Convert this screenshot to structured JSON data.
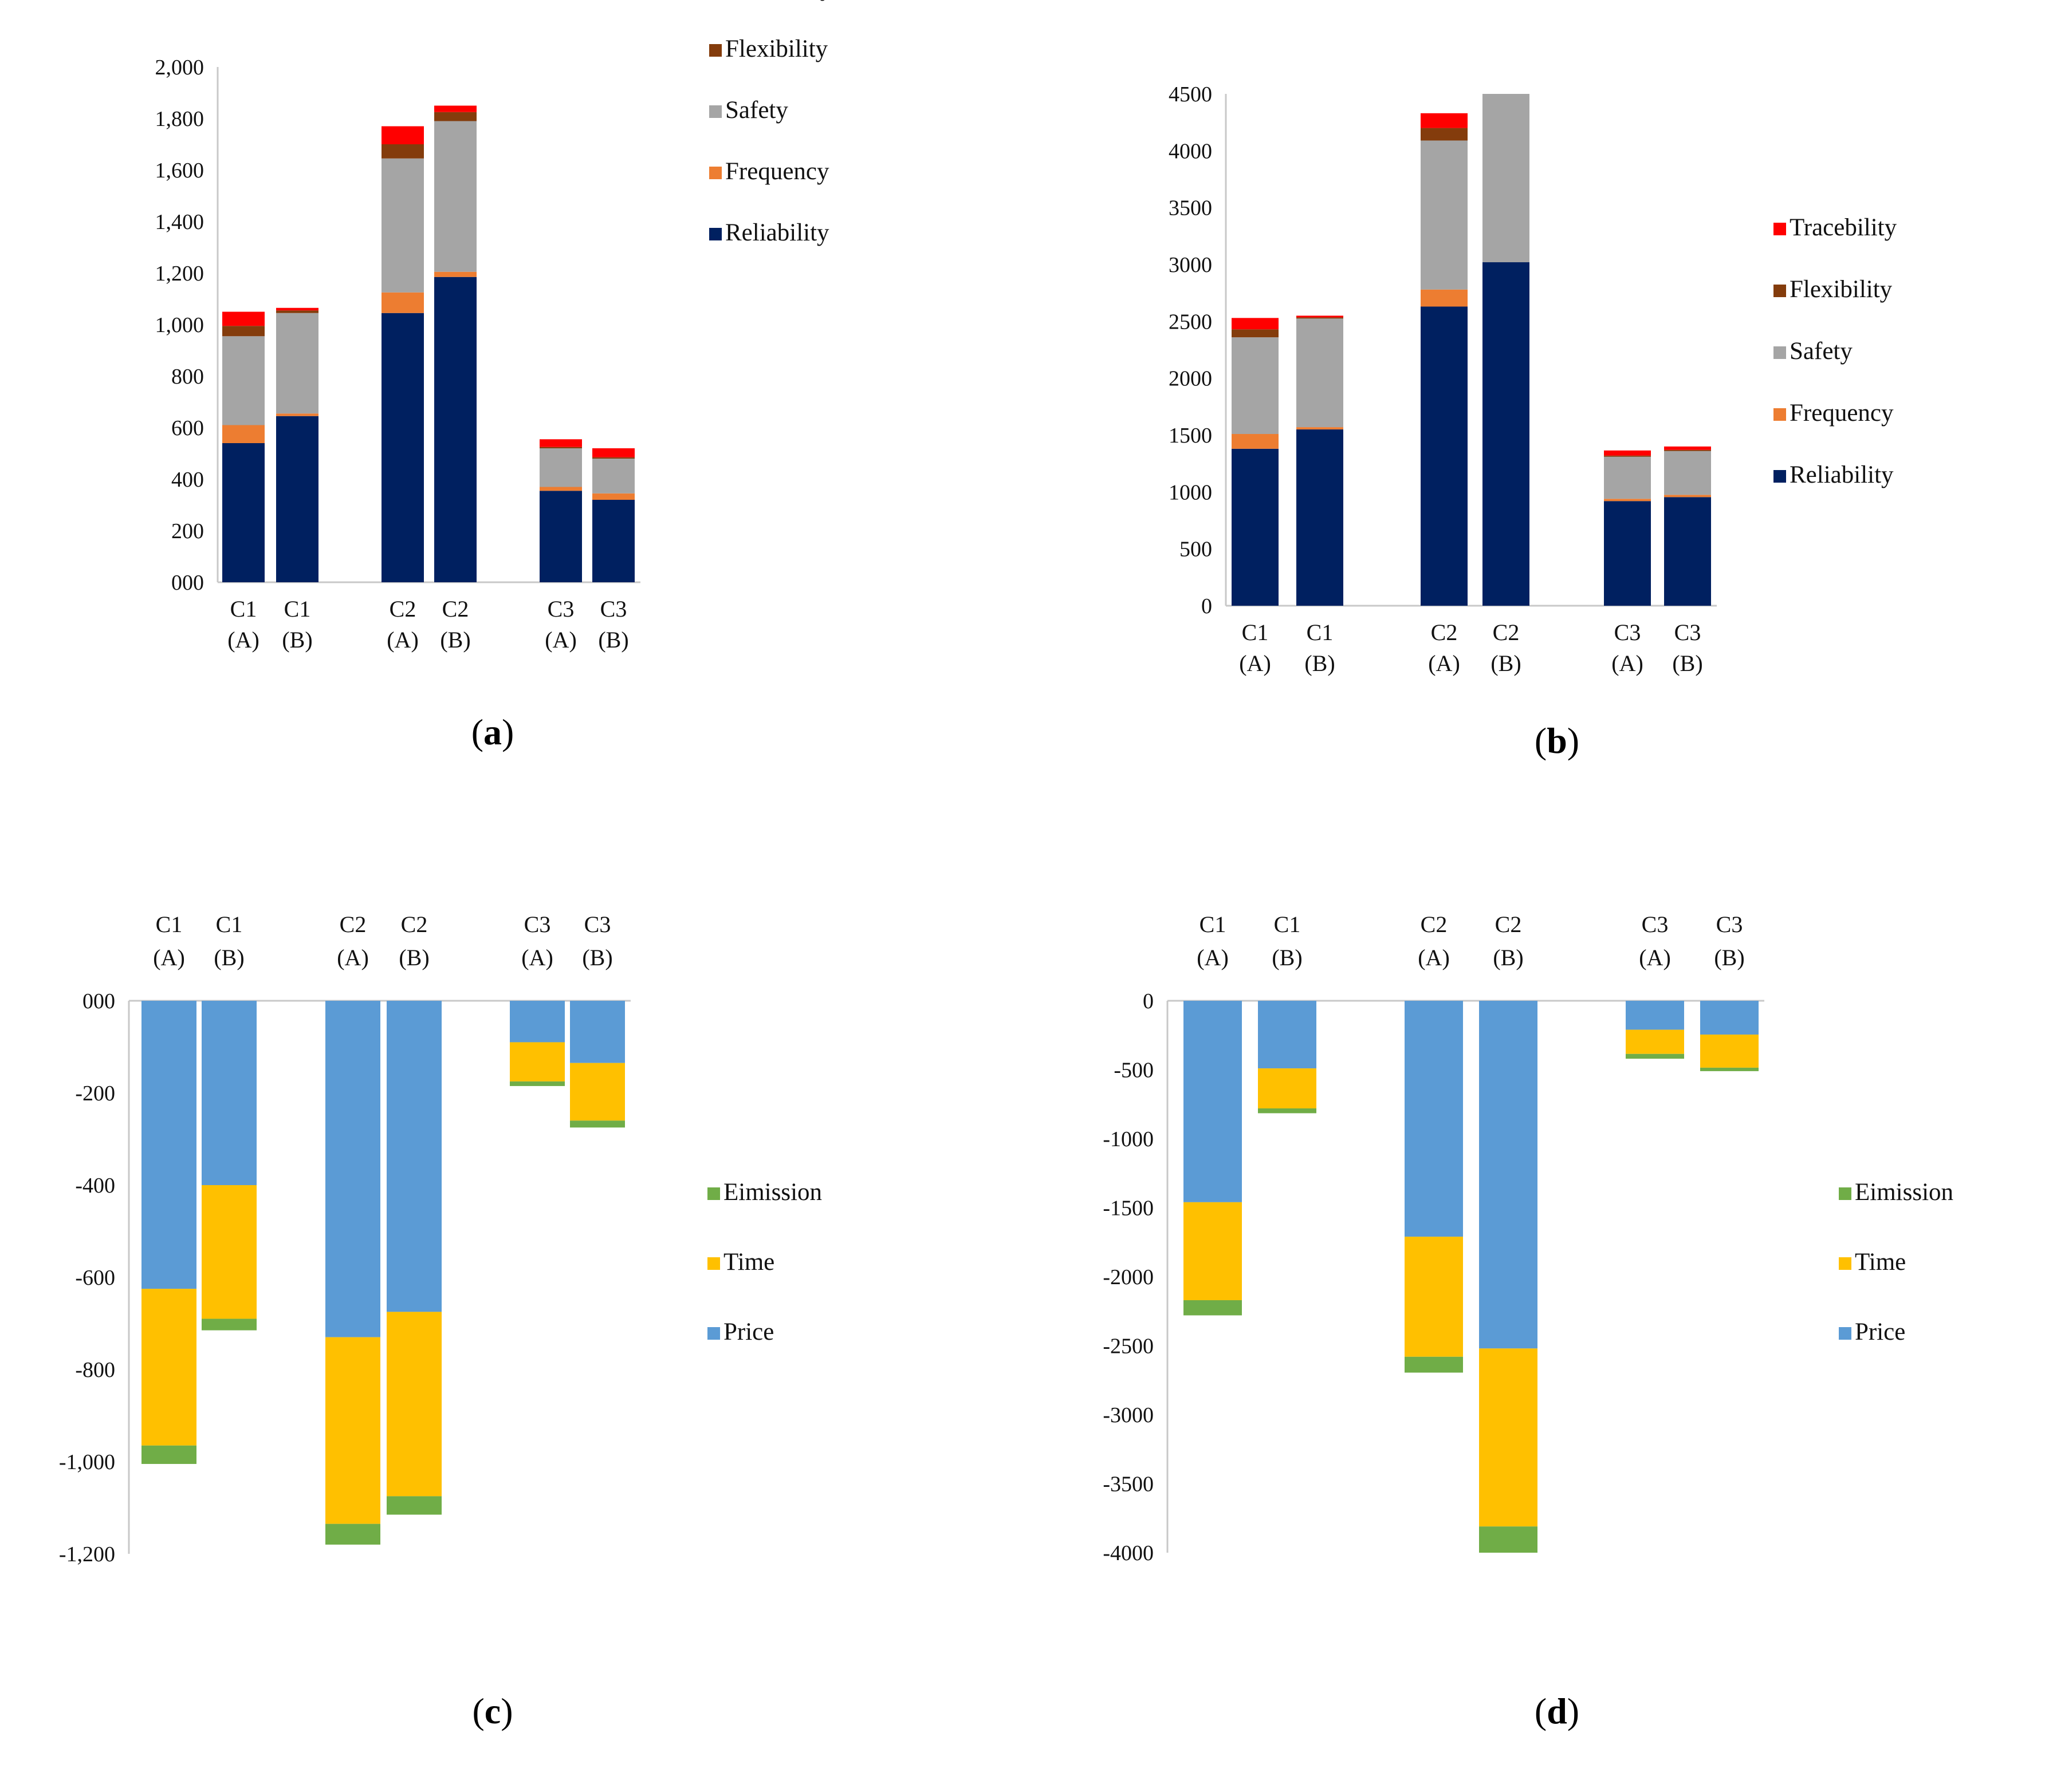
{
  "figure": {
    "background": "#ffffff",
    "axis_color": "#c8c8c8"
  },
  "chart_data": [
    {
      "id": "a",
      "panel_label": "a",
      "type": "bar",
      "stacked": true,
      "title": "",
      "xlabel": "",
      "ylabel": "",
      "ylim": [
        0,
        2000
      ],
      "yticks": [
        0,
        200,
        400,
        600,
        800,
        1000,
        1200,
        1400,
        1600,
        1800,
        2000
      ],
      "ytick_labels": [
        "000",
        "200",
        "400",
        "600",
        "800",
        "1,000",
        "1,200",
        "1,400",
        "1,600",
        "1,800",
        "2,000"
      ],
      "x_axis_position": "bottom",
      "grid": false,
      "legend_position": "right",
      "categories": [
        {
          "line1": "C1",
          "line2": "(A)"
        },
        {
          "line1": "C1",
          "line2": "(B)"
        },
        {
          "line1": "C2",
          "line2": "(A)"
        },
        {
          "line1": "C2",
          "line2": "(B)"
        },
        {
          "line1": "C3",
          "line2": "(A)"
        },
        {
          "line1": "C3",
          "line2": "(B)"
        }
      ],
      "groups": [
        [
          0,
          1
        ],
        [
          2,
          3
        ],
        [
          4,
          5
        ]
      ],
      "series": [
        {
          "name": "Reliability",
          "color": "#002060",
          "values": [
            540,
            645,
            1045,
            1185,
            355,
            320
          ]
        },
        {
          "name": "Frequency",
          "color": "#ed7d31",
          "values": [
            70,
            10,
            80,
            20,
            15,
            25
          ]
        },
        {
          "name": "Safety",
          "color": "#a5a5a5",
          "values": [
            345,
            390,
            520,
            585,
            150,
            135
          ]
        },
        {
          "name": "Flexibility",
          "color": "#843c0c",
          "values": [
            40,
            10,
            55,
            35,
            5,
            5
          ]
        },
        {
          "name": "Tracebility",
          "color": "#ff0000",
          "values": [
            55,
            10,
            70,
            25,
            30,
            35
          ]
        }
      ],
      "legend_order": [
        "Tracebility",
        "Flexibility",
        "Safety",
        "Frequency",
        "Reliability"
      ]
    },
    {
      "id": "b",
      "panel_label": "b",
      "type": "bar",
      "stacked": true,
      "title": "",
      "xlabel": "",
      "ylabel": "",
      "ylim": [
        0,
        4500
      ],
      "yticks": [
        0,
        500,
        1000,
        1500,
        2000,
        2500,
        3000,
        3500,
        4000,
        4500
      ],
      "ytick_labels": [
        "0",
        "500",
        "1000",
        "1500",
        "2000",
        "2500",
        "3000",
        "3500",
        "4000",
        "4500"
      ],
      "x_axis_position": "bottom",
      "grid": false,
      "legend_position": "right",
      "categories": [
        {
          "line1": "C1",
          "line2": "(A)"
        },
        {
          "line1": "C1",
          "line2": "(B)"
        },
        {
          "line1": "C2",
          "line2": "(A)"
        },
        {
          "line1": "C2",
          "line2": "(B)"
        },
        {
          "line1": "C3",
          "line2": "(A)"
        },
        {
          "line1": "C3",
          "line2": "(B)"
        }
      ],
      "groups": [
        [
          0,
          1
        ],
        [
          2,
          3
        ],
        [
          4,
          5
        ]
      ],
      "series": [
        {
          "name": "Reliability",
          "color": "#002060",
          "values": [
            1380,
            1550,
            2630,
            3020,
            920,
            955
          ]
        },
        {
          "name": "Frequency",
          "color": "#ed7d31",
          "values": [
            130,
            20,
            150,
            0,
            20,
            20
          ]
        },
        {
          "name": "Safety",
          "color": "#a5a5a5",
          "values": [
            850,
            955,
            1310,
            1480,
            370,
            385
          ]
        },
        {
          "name": "Flexibility",
          "color": "#843c0c",
          "values": [
            70,
            10,
            110,
            0,
            10,
            10
          ]
        },
        {
          "name": "Tracebility",
          "color": "#ff0000",
          "values": [
            100,
            15,
            130,
            0,
            45,
            30
          ]
        }
      ],
      "legend_order": [
        "Tracebility",
        "Flexibility",
        "Safety",
        "Frequency",
        "Reliability"
      ]
    },
    {
      "id": "c",
      "panel_label": "c",
      "type": "bar",
      "stacked": true,
      "title": "",
      "xlabel": "",
      "ylabel": "",
      "ylim": [
        -1200,
        0
      ],
      "yticks": [
        0,
        -200,
        -400,
        -600,
        -800,
        -1000,
        -1200
      ],
      "ytick_labels": [
        "000",
        "-200",
        "-400",
        "-600",
        "-800",
        "-1,000",
        "-1,200"
      ],
      "x_axis_position": "top",
      "grid": false,
      "legend_position": "right",
      "categories": [
        {
          "line1": "C1",
          "line2": "(A)"
        },
        {
          "line1": "C1",
          "line2": "(B)"
        },
        {
          "line1": "C2",
          "line2": "(A)"
        },
        {
          "line1": "C2",
          "line2": "(B)"
        },
        {
          "line1": "C3",
          "line2": "(A)"
        },
        {
          "line1": "C3",
          "line2": "(B)"
        }
      ],
      "groups": [
        [
          0,
          1
        ],
        [
          2,
          3
        ],
        [
          4,
          5
        ]
      ],
      "series": [
        {
          "name": "Price",
          "color": "#5b9bd5",
          "values": [
            -625,
            -400,
            -730,
            -675,
            -90,
            -135
          ]
        },
        {
          "name": "Time",
          "color": "#ffc000",
          "values": [
            -340,
            -290,
            -405,
            -400,
            -85,
            -125
          ]
        },
        {
          "name": "Eimission",
          "color": "#70ad47",
          "values": [
            -40,
            -25,
            -45,
            -40,
            -10,
            -15
          ]
        }
      ],
      "legend_order": [
        "Eimission",
        "Time",
        "Price"
      ]
    },
    {
      "id": "d",
      "panel_label": "d",
      "type": "bar",
      "stacked": true,
      "title": "",
      "xlabel": "",
      "ylabel": "",
      "ylim": [
        -4000,
        0
      ],
      "yticks": [
        0,
        -500,
        -1000,
        -1500,
        -2000,
        -2500,
        -3000,
        -3500,
        -4000
      ],
      "ytick_labels": [
        "0",
        "-500",
        "-1000",
        "-1500",
        "-2000",
        "-2500",
        "-3000",
        "-3500",
        "-4000"
      ],
      "x_axis_position": "top",
      "grid": false,
      "legend_position": "right",
      "categories": [
        {
          "line1": "C1",
          "line2": "(A)"
        },
        {
          "line1": "C1",
          "line2": "(B)"
        },
        {
          "line1": "C2",
          "line2": "(A)"
        },
        {
          "line1": "C2",
          "line2": "(B)"
        },
        {
          "line1": "C3",
          "line2": "(A)"
        },
        {
          "line1": "C3",
          "line2": "(B)"
        }
      ],
      "groups": [
        [
          0,
          1
        ],
        [
          2,
          3
        ],
        [
          4,
          5
        ]
      ],
      "series": [
        {
          "name": "Price",
          "color": "#5b9bd5",
          "values": [
            -1460,
            -490,
            -1710,
            -2520,
            -210,
            -245
          ]
        },
        {
          "name": "Time",
          "color": "#ffc000",
          "values": [
            -710,
            -290,
            -870,
            -1290,
            -175,
            -240
          ]
        },
        {
          "name": "Eimission",
          "color": "#70ad47",
          "values": [
            -110,
            -35,
            -115,
            -190,
            -35,
            -25
          ]
        }
      ],
      "legend_order": [
        "Eimission",
        "Time",
        "Price"
      ]
    }
  ]
}
